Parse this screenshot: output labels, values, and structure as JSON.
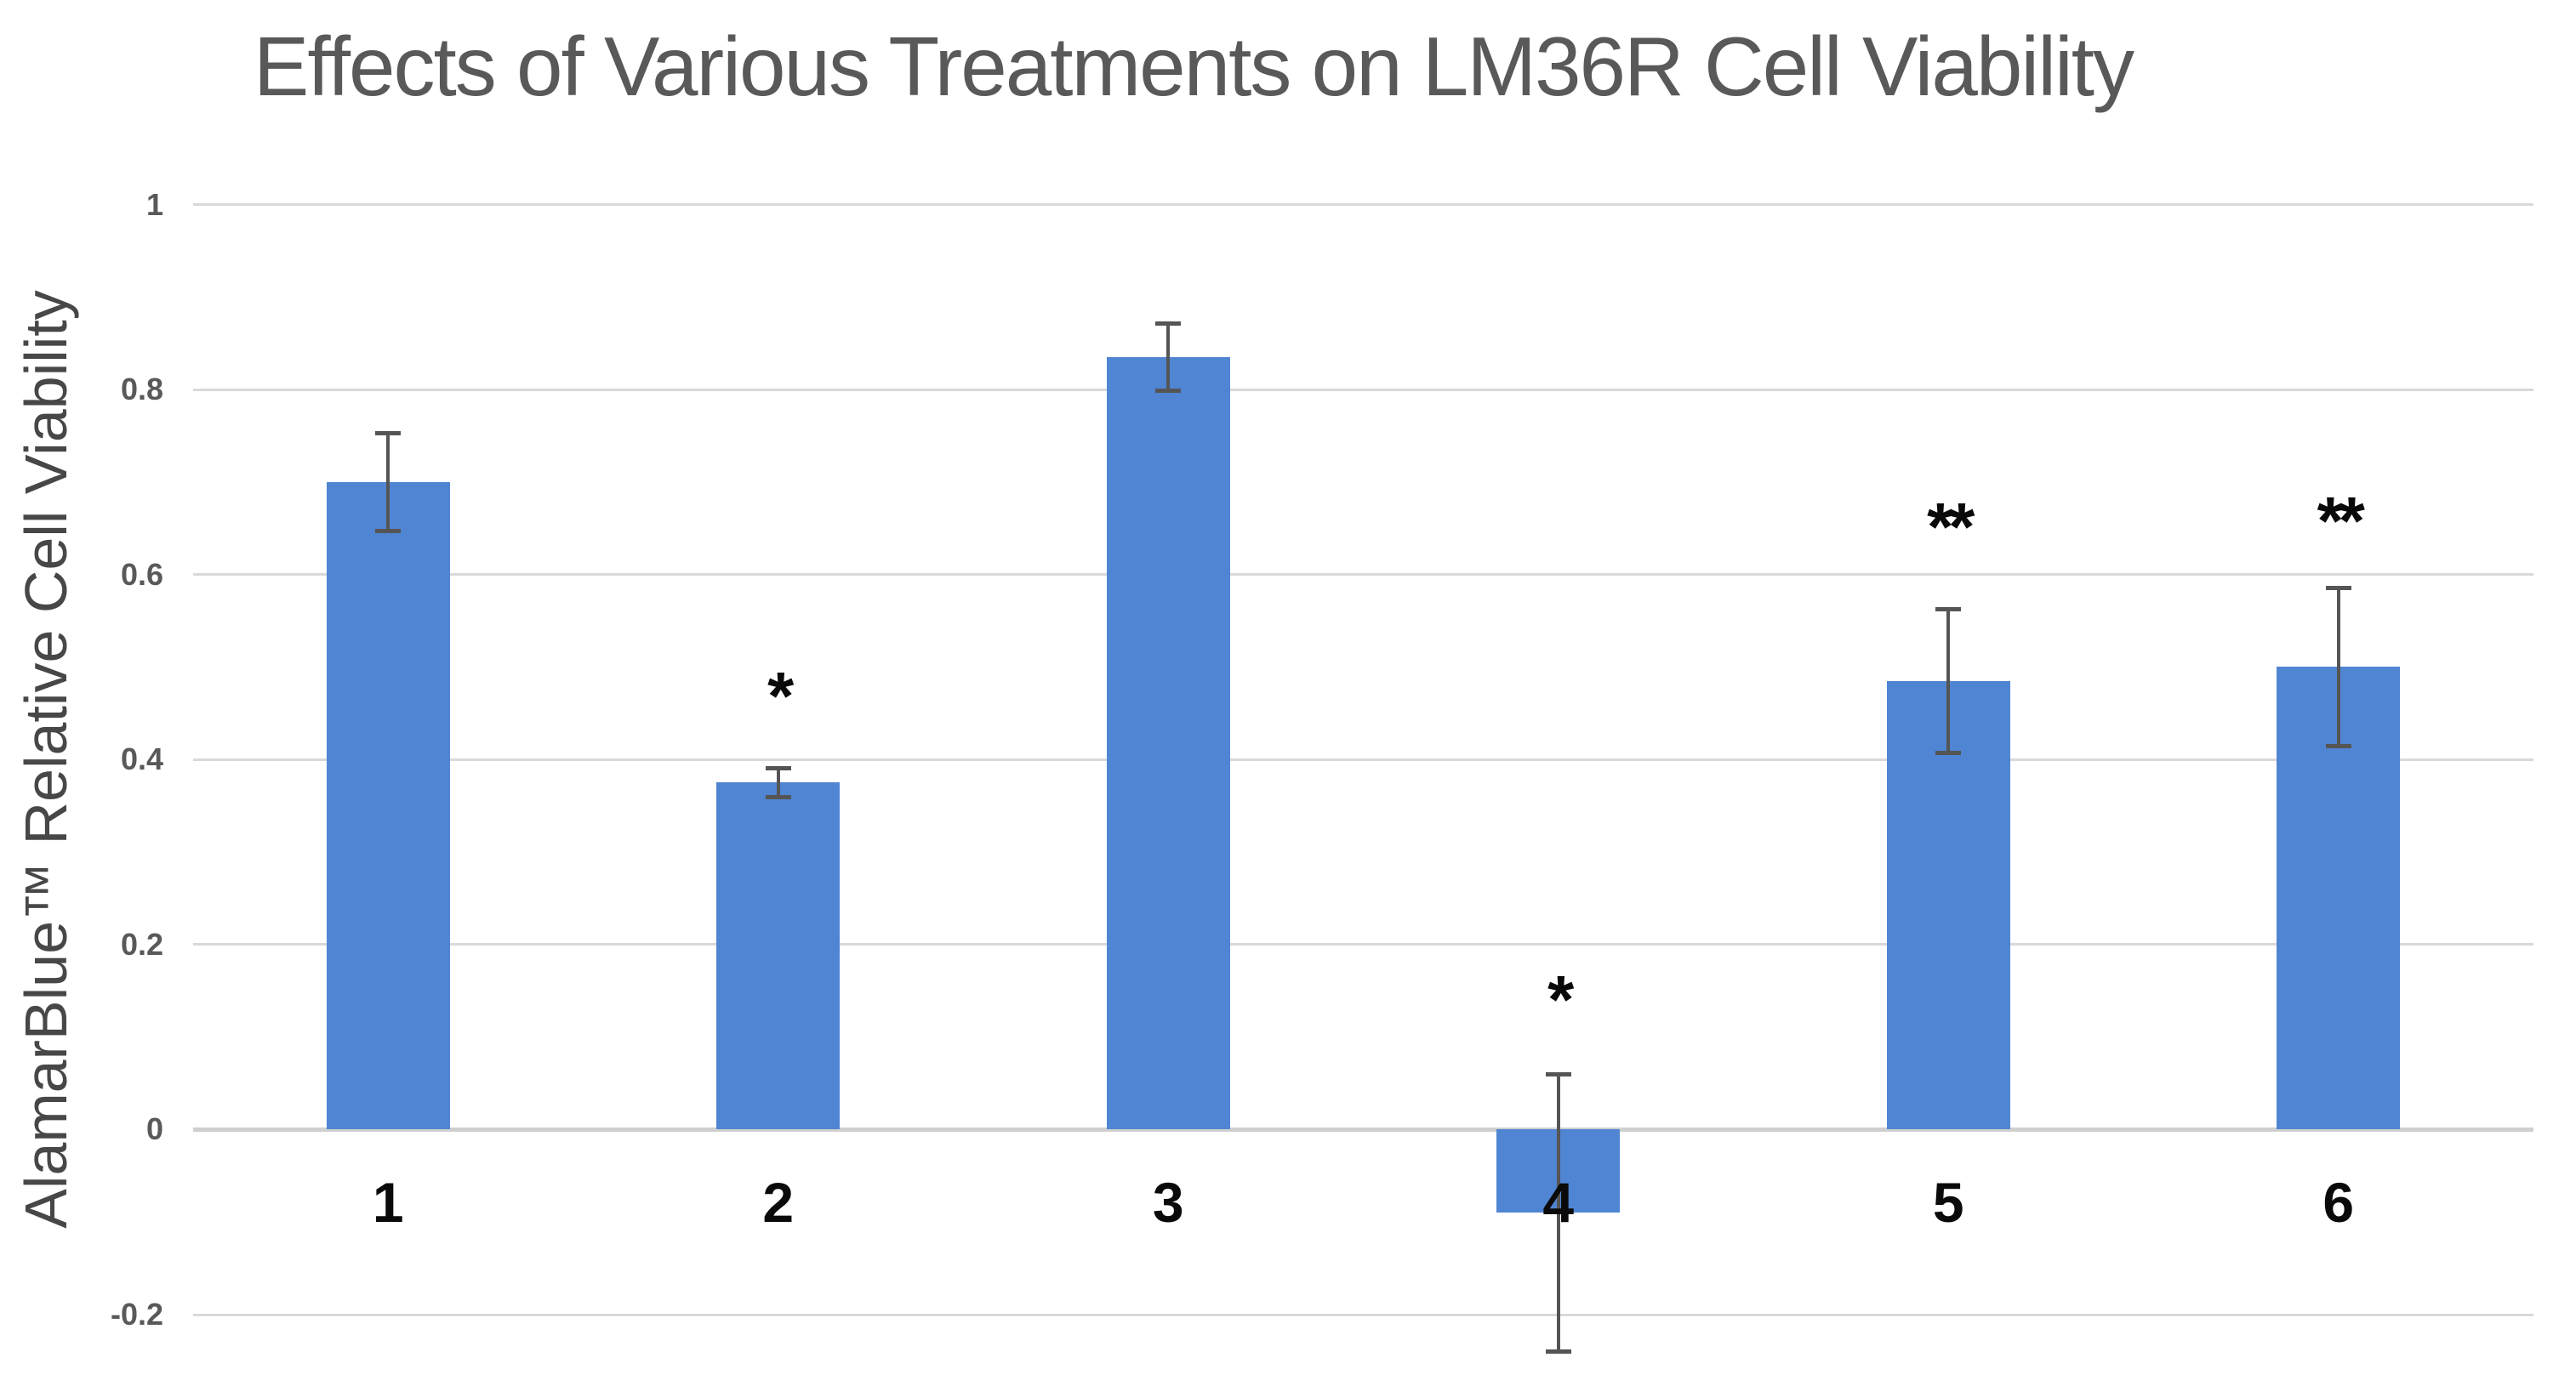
{
  "chart_data": {
    "type": "bar",
    "title": "Effects of Various Treatments on LM36R Cell Viability",
    "xlabel": "",
    "ylabel": "AlamarBlue™ Relative Cell Viability",
    "categories": [
      "1",
      "2",
      "3",
      "4",
      "5",
      "6"
    ],
    "values": [
      0.7,
      0.375,
      0.835,
      -0.09,
      0.485,
      0.5
    ],
    "error_bars": [
      0.053,
      0.016,
      0.037,
      0.15,
      0.078,
      0.086
    ],
    "significance": [
      "",
      "*",
      "",
      "*",
      "**",
      "**"
    ],
    "significance_y": [
      null,
      0.48,
      null,
      0.152,
      0.663,
      0.67
    ],
    "yticks": [
      {
        "v": 1,
        "label": "1"
      },
      {
        "v": 0.8,
        "label": "0.8"
      },
      {
        "v": 0.6,
        "label": "0.6"
      },
      {
        "v": 0.4,
        "label": "0.4"
      },
      {
        "v": 0.2,
        "label": "0.2"
      },
      {
        "v": 0,
        "label": "0"
      },
      {
        "v": -0.2,
        "label": "-0.2"
      }
    ],
    "ylim": [
      -0.2,
      1.0
    ],
    "grid": true,
    "legend": false,
    "colors": {
      "bar": "#5085d3",
      "gridline": "#d9d9d9",
      "zero_axis": "#cfcfcf",
      "error_bar": "#555555",
      "title": "#595959",
      "tick_label": "#595959",
      "axis_title": "#474747",
      "category_label": "#0a0a0a",
      "significance": "#0a0a0a",
      "background": "#ffffff"
    }
  }
}
